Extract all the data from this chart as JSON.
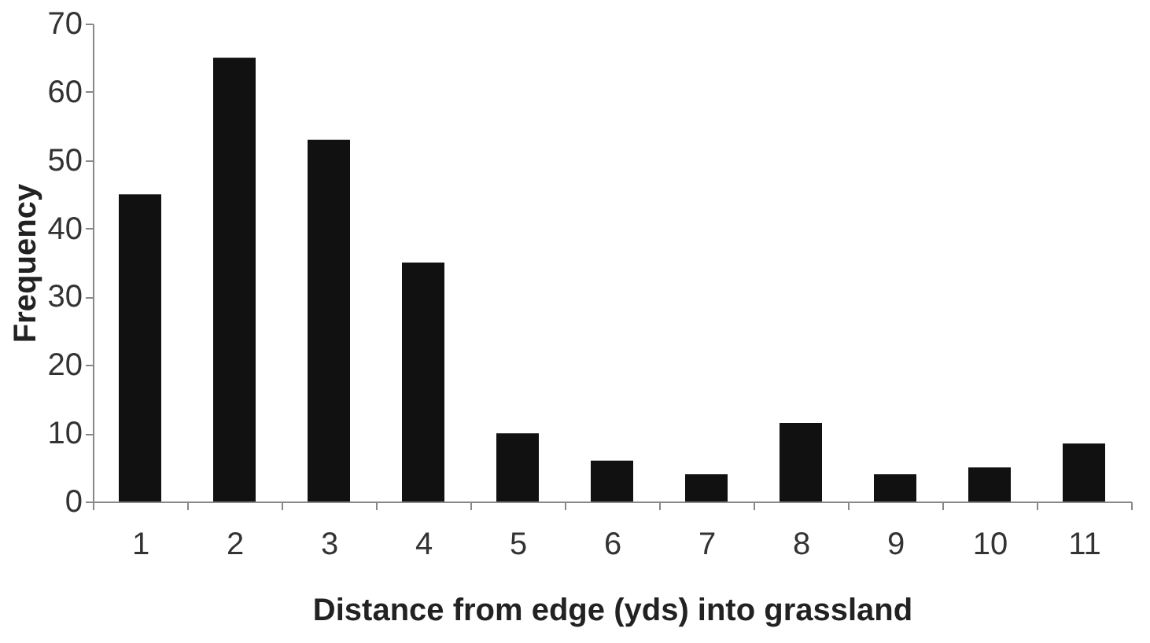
{
  "chart_data": {
    "type": "bar",
    "xlabel": "Distance from edge (yds) into grassland",
    "ylabel": "Frequency",
    "categories": [
      "1",
      "2",
      "3",
      "4",
      "5",
      "6",
      "7",
      "8",
      "9",
      "10",
      "11"
    ],
    "values": [
      45,
      65,
      53,
      35,
      10,
      6,
      4,
      11.5,
      4,
      5,
      8.5
    ],
    "color": "#111111",
    "ylim": [
      0,
      70
    ],
    "yticks": [
      0,
      10,
      20,
      30,
      40,
      50,
      60,
      70
    ],
    "grid": false
  }
}
